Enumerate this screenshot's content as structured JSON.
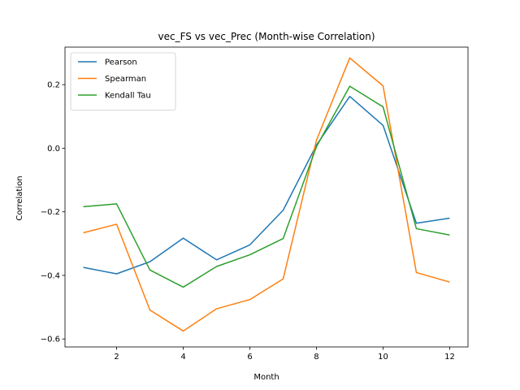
{
  "chart_data": {
    "type": "line",
    "title": "vec_FS vs vec_Prec (Month-wise Correlation)",
    "xlabel": "Month",
    "ylabel": "Correlation",
    "x": [
      1,
      2,
      3,
      4,
      5,
      6,
      7,
      8,
      9,
      10,
      11,
      12
    ],
    "xlim": [
      0.45,
      12.55
    ],
    "ylim": [
      -0.625,
      0.318
    ],
    "xticks": [
      2,
      4,
      6,
      8,
      10,
      12
    ],
    "xtick_labels": [
      "2",
      "4",
      "6",
      "8",
      "10",
      "12"
    ],
    "yticks": [
      -0.6,
      -0.4,
      -0.2,
      0.0,
      0.2
    ],
    "ytick_labels": [
      "−0.6",
      "−0.4",
      "−0.2",
      "0.0",
      "0.2"
    ],
    "grid": false,
    "legend": "top-left",
    "series": [
      {
        "name": "Pearson",
        "color": "#1f77b4",
        "values": [
          -0.375,
          -0.395,
          -0.357,
          -0.283,
          -0.351,
          -0.304,
          -0.195,
          0.01,
          0.163,
          0.072,
          -0.236,
          -0.22
        ]
      },
      {
        "name": "Spearman",
        "color": "#ff7f0e",
        "values": [
          -0.266,
          -0.239,
          -0.509,
          -0.575,
          -0.505,
          -0.476,
          -0.411,
          0.025,
          0.284,
          0.196,
          -0.391,
          -0.421
        ]
      },
      {
        "name": "Kendall Tau",
        "color": "#2ca02c",
        "values": [
          -0.184,
          -0.175,
          -0.383,
          -0.437,
          -0.372,
          -0.335,
          -0.284,
          0.005,
          0.195,
          0.13,
          -0.253,
          -0.273
        ]
      }
    ]
  }
}
